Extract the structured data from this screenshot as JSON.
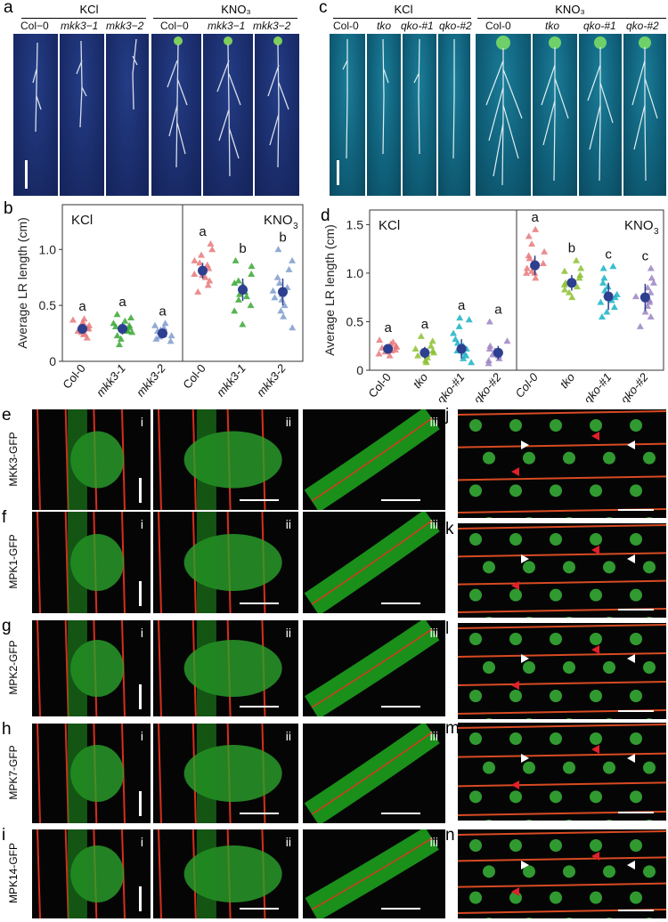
{
  "panel_a": {
    "label": "a",
    "groups": [
      {
        "name": "KCl"
      },
      {
        "name": "KNO₃"
      }
    ],
    "lanes": [
      "Col−0",
      "mkk3−1",
      "mkk3−2",
      "Col−0",
      "mkk3−1",
      "mkk3−2"
    ]
  },
  "panel_c": {
    "label": "c",
    "groups": [
      {
        "name": "KCl"
      },
      {
        "name": "KNO₃"
      }
    ],
    "lanes": [
      "Col-0",
      "tko",
      "qko-#1",
      "qko-#2",
      "Col-0",
      "tko",
      "qko-#1",
      "qko-#2"
    ]
  },
  "panel_b": {
    "label": "b"
  },
  "panel_d": {
    "label": "d"
  },
  "chart_data": [
    {
      "type": "scatter",
      "panel": "b",
      "ylabel": "Average LR length (cm)",
      "ylim": [
        0,
        1.4
      ],
      "yticks": [
        "0",
        "0.5",
        "1.0"
      ],
      "categories": [
        "Col-0",
        "mkk3-1",
        "mkk3-2",
        "Col-0",
        "mkk3-1",
        "mkk3-2"
      ],
      "treatments": [
        "KCl",
        "KNO",
        "3"
      ],
      "means": [
        0.29,
        0.29,
        0.25,
        0.81,
        0.64,
        0.62
      ],
      "errors": [
        0.04,
        0.05,
        0.04,
        0.07,
        0.1,
        0.12
      ],
      "letters": [
        "a",
        "a",
        "a",
        "a",
        "b",
        "b"
      ],
      "colors": [
        "#e8797b",
        "#3aa835",
        "#7f9ccd",
        "#e8797b",
        "#3aa835",
        "#7f9ccd"
      ],
      "points": [
        [
          0.21,
          0.24,
          0.26,
          0.27,
          0.29,
          0.3,
          0.31,
          0.33,
          0.35,
          0.37,
          0.38,
          0.25,
          0.28,
          0.32
        ],
        [
          0.15,
          0.2,
          0.23,
          0.26,
          0.28,
          0.3,
          0.32,
          0.34,
          0.36,
          0.39,
          0.42,
          0.27,
          0.31
        ],
        [
          0.18,
          0.2,
          0.22,
          0.24,
          0.26,
          0.28,
          0.3,
          0.32,
          0.34,
          0.23,
          0.27
        ],
        [
          0.62,
          0.68,
          0.72,
          0.75,
          0.78,
          0.8,
          0.83,
          0.86,
          0.9,
          0.95,
          1.0,
          1.05,
          0.77,
          0.88
        ],
        [
          0.33,
          0.45,
          0.5,
          0.55,
          0.6,
          0.62,
          0.65,
          0.68,
          0.72,
          0.78,
          0.85,
          0.9,
          0.58,
          0.7
        ],
        [
          0.3,
          0.4,
          0.45,
          0.5,
          0.55,
          0.6,
          0.63,
          0.66,
          0.7,
          0.75,
          0.82,
          0.9,
          1.0,
          0.57
        ]
      ]
    },
    {
      "type": "scatter",
      "panel": "d",
      "ylabel": "Average LR length (cm)",
      "ylim": [
        0,
        1.65
      ],
      "yticks": [
        "0",
        "0.5",
        "1.0",
        "1.5"
      ],
      "categories": [
        "Col-0",
        "tko",
        "qko-#1",
        "qko-#2",
        "Col-0",
        "tko",
        "qko-#1",
        "qko-#2"
      ],
      "treatments": [
        "KCl",
        "KNO",
        "3"
      ],
      "means": [
        0.22,
        0.18,
        0.22,
        0.18,
        1.08,
        0.9,
        0.76,
        0.75
      ],
      "errors": [
        0.05,
        0.06,
        0.1,
        0.07,
        0.1,
        0.08,
        0.14,
        0.14
      ],
      "letters": [
        "a",
        "a",
        "a",
        "a",
        "a",
        "b",
        "c",
        "c"
      ],
      "colors": [
        "#e8797b",
        "#8cbf2f",
        "#19b3c6",
        "#9c84c3",
        "#e8797b",
        "#8cbf2f",
        "#19b3c6",
        "#9c84c3"
      ],
      "points": [
        [
          0.15,
          0.17,
          0.19,
          0.21,
          0.23,
          0.25,
          0.27,
          0.29,
          0.31,
          0.2,
          0.24
        ],
        [
          0.08,
          0.1,
          0.13,
          0.16,
          0.18,
          0.2,
          0.22,
          0.25,
          0.3,
          0.35,
          0.15
        ],
        [
          0.08,
          0.12,
          0.15,
          0.18,
          0.22,
          0.25,
          0.28,
          0.32,
          0.38,
          0.45,
          0.52,
          0.54,
          0.2
        ],
        [
          0.07,
          0.1,
          0.12,
          0.15,
          0.18,
          0.2,
          0.22,
          0.25,
          0.3,
          0.5,
          0.16
        ],
        [
          0.95,
          1.0,
          1.02,
          1.05,
          1.08,
          1.1,
          1.12,
          1.15,
          1.18,
          1.22,
          1.3,
          1.38,
          1.45,
          1.0
        ],
        [
          0.75,
          0.8,
          0.83,
          0.86,
          0.9,
          0.92,
          0.95,
          0.98,
          1.02,
          1.05,
          1.13,
          0.88
        ],
        [
          0.55,
          0.6,
          0.65,
          0.7,
          0.75,
          0.78,
          0.82,
          0.86,
          0.9,
          0.95,
          1.05,
          1.07,
          0.72
        ],
        [
          0.45,
          0.55,
          0.6,
          0.66,
          0.72,
          0.76,
          0.8,
          0.85,
          0.9,
          0.95,
          1.05,
          0.7
        ]
      ]
    }
  ],
  "micro": {
    "rows": [
      {
        "label": "e",
        "construct": "MKK3-GFP",
        "side_label": "j"
      },
      {
        "label": "f",
        "construct": "MPK1-GFP",
        "side_label": "k"
      },
      {
        "label": "g",
        "construct": "MPK2-GFP",
        "side_label": "l"
      },
      {
        "label": "h",
        "construct": "MPK7-GFP",
        "side_label": "m"
      },
      {
        "label": "i",
        "construct": "MPK14-GFP",
        "side_label": "n"
      }
    ],
    "subpanels": [
      "i",
      "ii",
      "iii"
    ]
  }
}
